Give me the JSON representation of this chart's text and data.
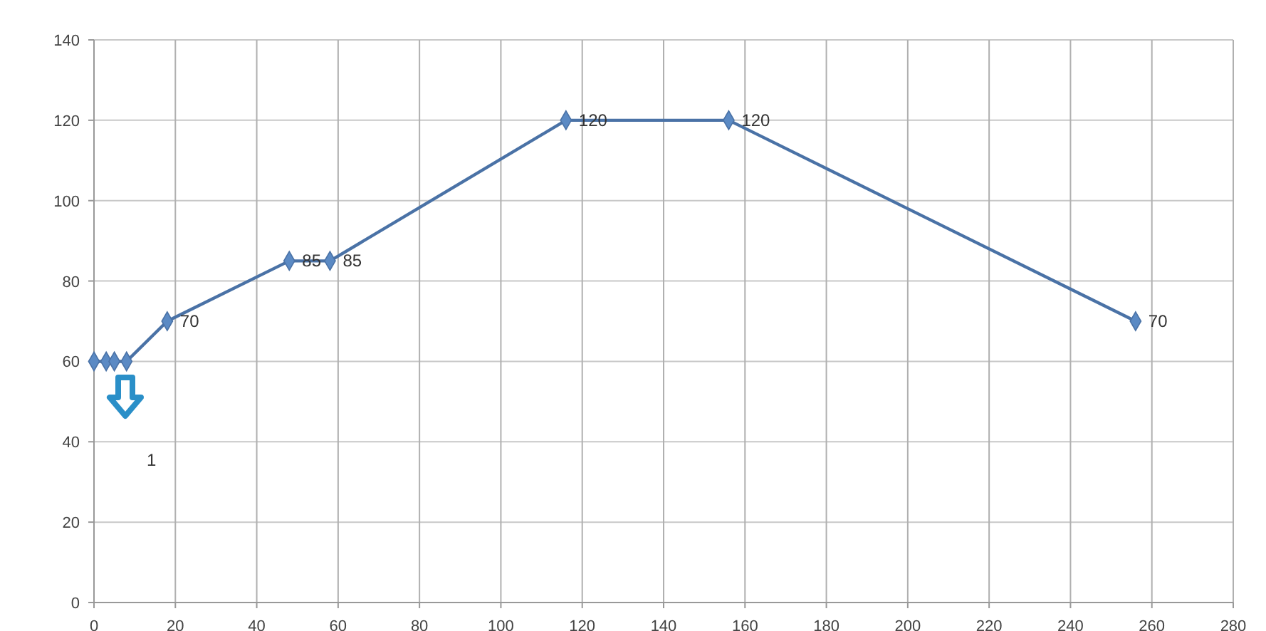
{
  "chart_data": {
    "type": "line",
    "x": [
      0,
      3,
      5,
      8,
      18,
      48,
      58,
      116,
      156,
      256
    ],
    "series": [
      {
        "color": "#4a72a6",
        "values": [
          60,
          60,
          60,
          60,
          70,
          85,
          85,
          120,
          120,
          70
        ],
        "value_labels": [
          null,
          null,
          null,
          null,
          "70",
          "85",
          "85",
          "120",
          "120",
          "70"
        ]
      }
    ],
    "xlim": [
      0,
      280
    ],
    "xticks": [
      0,
      20,
      40,
      60,
      80,
      100,
      120,
      140,
      160,
      180,
      200,
      220,
      240,
      260,
      280
    ],
    "ylim": [
      0,
      140
    ],
    "yticks": [
      0,
      20,
      40,
      60,
      80,
      100,
      120,
      140
    ],
    "grid": true,
    "marker": "diamond",
    "line_style": "solid",
    "annotations": [
      "1"
    ]
  }
}
